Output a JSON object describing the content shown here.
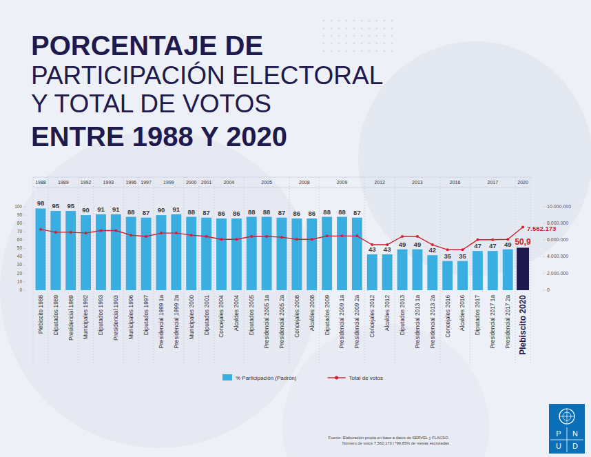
{
  "chart_data": {
    "type": "bar",
    "title": [
      "PORCENTAJE DE",
      "PARTICIPACIÓN ELECTORAL",
      "Y TOTAL DE VOTOS",
      "ENTRE 1988 Y 2020"
    ],
    "categories": [
      "Plebiscito 1988",
      "Diputados 1989",
      "Presidencial 1989",
      "Municipales 1992",
      "Diputados 1993",
      "Presidencial 1993",
      "Municipales 1996",
      "Diputados 1997",
      "Presidencial 1999 1a",
      "Presidencial 1999 2a",
      "Municipales 2000",
      "Diputados 2001",
      "Concejales 2004",
      "Alcaldes 2004",
      "Diputados 2005",
      "Presidencial 2005 1a",
      "Presidencial 2005 2a",
      "Concejales 2008",
      "Alcaldes 2008",
      "Diputados 2009",
      "Presidencial 2009 1a",
      "Presidencial 2009 2a",
      "Concejales 2012",
      "Alcaldes 2012",
      "Diputados 2013",
      "Presidencial 2013 1a",
      "Presidencial 2013 2a",
      "Concejales 2016",
      "Alcaldes 2016",
      "Diputados 2017",
      "Presidencial 2017 1a",
      "Presidencial 2017 2a",
      "Plebiscito 2020"
    ],
    "years": [
      "1988",
      "1989",
      null,
      "1992",
      "1993",
      null,
      "1996",
      "1997",
      "1999",
      null,
      "2000",
      "2001",
      "2004",
      null,
      "2005",
      null,
      null,
      "2008",
      null,
      "2009",
      null,
      null,
      "2012",
      null,
      "2013",
      null,
      null,
      "2016",
      null,
      "2017",
      null,
      null,
      "2020"
    ],
    "series": [
      {
        "name": "% Participación (Padrón)",
        "type": "bar",
        "color": "#3aaee0",
        "colors": [
          "#3aaee0",
          "#3aaee0",
          "#3aaee0",
          "#3aaee0",
          "#3aaee0",
          "#3aaee0",
          "#3aaee0",
          "#3aaee0",
          "#3aaee0",
          "#3aaee0",
          "#3aaee0",
          "#3aaee0",
          "#3aaee0",
          "#3aaee0",
          "#3aaee0",
          "#3aaee0",
          "#3aaee0",
          "#3aaee0",
          "#3aaee0",
          "#3aaee0",
          "#3aaee0",
          "#3aaee0",
          "#3aaee0",
          "#3aaee0",
          "#3aaee0",
          "#3aaee0",
          "#3aaee0",
          "#3aaee0",
          "#3aaee0",
          "#3aaee0",
          "#3aaee0",
          "#3aaee0",
          "#1e1a4d"
        ],
        "values": [
          98,
          95,
          95,
          90,
          91,
          91,
          88,
          87,
          90,
          91,
          88,
          87,
          86,
          86,
          88,
          88,
          87,
          86,
          86,
          88,
          88,
          87,
          43,
          43,
          49,
          49,
          42,
          35,
          35,
          47,
          47,
          49,
          50.9
        ],
        "value_labels": [
          "98",
          "95",
          "95",
          "90",
          "91",
          "91",
          "88",
          "87",
          "90",
          "91",
          "88",
          "87",
          "86",
          "86",
          "88",
          "88",
          "87",
          "86",
          "86",
          "88",
          "88",
          "87",
          "43",
          "43",
          "49",
          "49",
          "42",
          "35",
          "35",
          "47",
          "47",
          "49",
          "50,9"
        ],
        "data_labels": true
      },
      {
        "name": "Total de votos",
        "type": "line",
        "axis": "y2",
        "color": "#d0202f",
        "marker": "circle",
        "values": [
          7300000,
          6950000,
          6950000,
          6850000,
          7150000,
          7150000,
          6600000,
          6450000,
          6850000,
          6850000,
          6600000,
          6450000,
          6100000,
          6100000,
          6450000,
          6450000,
          6350000,
          6100000,
          6100000,
          6500000,
          6500000,
          6500000,
          5450000,
          5450000,
          6450000,
          6450000,
          5450000,
          4850000,
          4850000,
          6050000,
          6050000,
          6100000,
          7562173
        ],
        "value_labels": [
          null,
          null,
          null,
          null,
          null,
          null,
          null,
          null,
          null,
          null,
          null,
          null,
          null,
          null,
          null,
          null,
          null,
          null,
          null,
          null,
          null,
          null,
          null,
          null,
          null,
          null,
          null,
          null,
          null,
          null,
          null,
          null,
          "7.562.173"
        ],
        "data_labels": true
      }
    ],
    "ylim": [
      0,
      100
    ],
    "yticks": [
      0,
      10,
      20,
      30,
      40,
      50,
      60,
      70,
      80,
      90,
      100
    ],
    "y2lim": [
      0,
      10000000
    ],
    "y2ticks": [
      {
        "value": 0,
        "label": "0"
      },
      {
        "value": 2000000,
        "label": "2.000.000"
      },
      {
        "value": 4000000,
        "label": "4.000.000"
      },
      {
        "value": 6000000,
        "label": "6.000.000"
      },
      {
        "value": 8000000,
        "label": "8.000.000"
      },
      {
        "value": 10000000,
        "label": "10.000.000"
      }
    ],
    "legend": "bottom",
    "grid": false
  },
  "notes": [
    "Fuente: Elaboración propia en base a datos de SERVEL y FLACSO.",
    "Número de votos 7.562.173 | *99,85% de mesas escrutadas"
  ],
  "logo": "PNUD"
}
